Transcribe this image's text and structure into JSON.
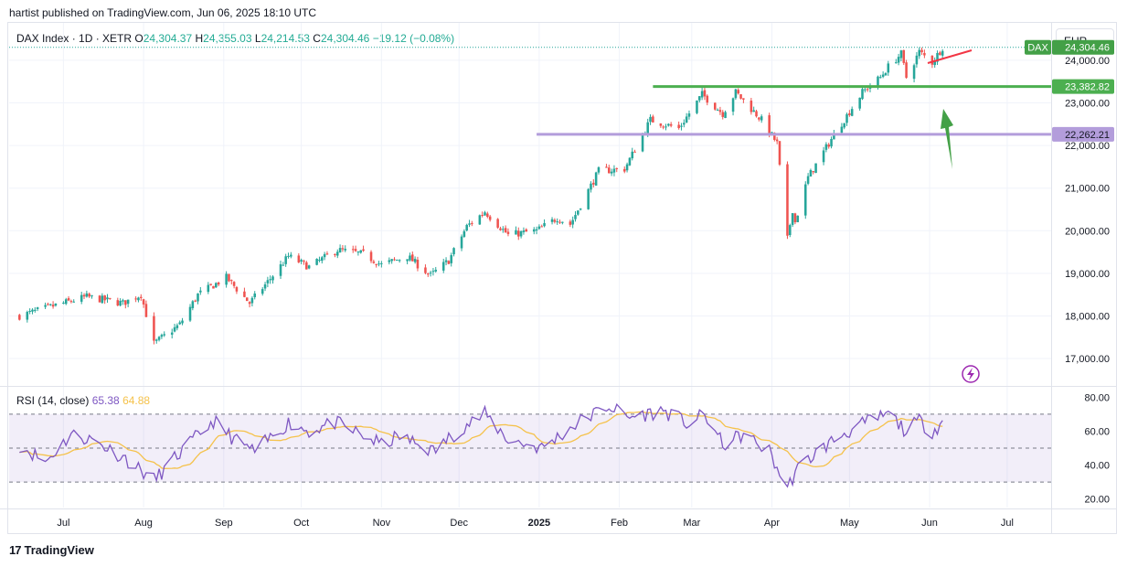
{
  "header": {
    "text": "hartist published on TradingView.com, Jun 06, 2025 18:10 UTC"
  },
  "legend": {
    "symbol": "DAX Index · 1D · XETR",
    "o_label": "O",
    "o": "24,304.37",
    "h_label": "H",
    "h": "24,355.03",
    "l_label": "L",
    "l": "24,214.53",
    "c_label": "C",
    "c": "24,304.46",
    "change": "−19.12 (−0.08%)"
  },
  "currency": "EUR",
  "rsi_legend": {
    "name": "RSI (14, close)",
    "value": "65.38",
    "ma": "64.88"
  },
  "footer": {
    "brand": "TradingView",
    "logo": "17"
  },
  "colors": {
    "up": "#26a69a",
    "down": "#ef5350",
    "green_line": "#4caf50",
    "purple_line": "#b39ddb",
    "rsi": "#7e57c2",
    "rsi_ma": "#f5c24b"
  },
  "chart_data": {
    "type": "candlestick",
    "symbol": "DAX",
    "price_axis": {
      "ticks": [
        "17,000.00",
        "18,000.00",
        "19,000.00",
        "20,000.00",
        "21,000.00",
        "22,000.00",
        "23,000.00",
        "24,000.00"
      ],
      "range": [
        16400,
        24900
      ]
    },
    "price_labels": [
      {
        "text": "DAX",
        "kind": "symbol"
      },
      {
        "text": "24,304.46",
        "kind": "last",
        "value": 24304.46
      },
      {
        "text": "23,382.82",
        "kind": "level",
        "value": 23382.82
      },
      {
        "text": "22,262.21",
        "kind": "level",
        "value": 22262.21
      }
    ],
    "horizontal_lines": [
      {
        "value": 23382.82,
        "from": "2025-02-14",
        "color": "#4caf50"
      },
      {
        "value": 22262.21,
        "from": "2024-12-31",
        "color": "#b39ddb"
      }
    ],
    "x_axis": [
      "Jul",
      "Aug",
      "Sep",
      "Oct",
      "Nov",
      "Dec",
      "2025",
      "Feb",
      "Mar",
      "Apr",
      "May",
      "Jun",
      "Jul"
    ],
    "anchors": [
      [
        "2024-06-14",
        18000
      ],
      [
        "2024-06-28",
        18250
      ],
      [
        "2024-07-10",
        18450
      ],
      [
        "2024-07-24",
        18300
      ],
      [
        "2024-07-31",
        18500
      ],
      [
        "2024-08-05",
        17350
      ],
      [
        "2024-08-15",
        17800
      ],
      [
        "2024-08-22",
        18500
      ],
      [
        "2024-09-02",
        18900
      ],
      [
        "2024-09-11",
        18300
      ],
      [
        "2024-09-18",
        18800
      ],
      [
        "2024-09-26",
        19400
      ],
      [
        "2024-10-04",
        19150
      ],
      [
        "2024-10-15",
        19550
      ],
      [
        "2024-10-25",
        19450
      ],
      [
        "2024-11-01",
        19200
      ],
      [
        "2024-11-11",
        19400
      ],
      [
        "2024-11-20",
        18950
      ],
      [
        "2024-11-27",
        19300
      ],
      [
        "2024-12-04",
        20100
      ],
      [
        "2024-12-11",
        20450
      ],
      [
        "2024-12-20",
        19900
      ],
      [
        "2024-12-31",
        20000
      ],
      [
        "2025-01-08",
        20300
      ],
      [
        "2025-01-13",
        20150
      ],
      [
        "2025-01-24",
        21400
      ],
      [
        "2025-02-03",
        21450
      ],
      [
        "2025-02-13",
        22600
      ],
      [
        "2025-02-24",
        22400
      ],
      [
        "2025-03-05",
        23200
      ],
      [
        "2025-03-13",
        22750
      ],
      [
        "2025-03-18",
        23250
      ],
      [
        "2025-03-28",
        22600
      ],
      [
        "2025-04-03",
        22050
      ],
      [
        "2025-04-07",
        19800
      ],
      [
        "2025-04-09",
        20500
      ],
      [
        "2025-04-10",
        20200
      ],
      [
        "2025-04-15",
        21250
      ],
      [
        "2025-04-25",
        22250
      ],
      [
        "2025-05-06",
        23250
      ],
      [
        "2025-05-13",
        23600
      ],
      [
        "2025-05-16",
        23850
      ],
      [
        "2025-05-21",
        24150
      ],
      [
        "2025-05-23",
        23600
      ],
      [
        "2025-05-28",
        24200
      ],
      [
        "2025-06-02",
        23950
      ],
      [
        "2025-06-06",
        24304.46
      ]
    ],
    "rsi": {
      "axis_ticks": [
        "20.00",
        "40.00",
        "60.00",
        "80.00"
      ],
      "bands": [
        30,
        50,
        70
      ],
      "value": 65.38,
      "ma": 64.88,
      "anchors": [
        [
          "2024-06-14",
          52
        ],
        [
          "2024-06-24",
          42
        ],
        [
          "2024-07-04",
          58
        ],
        [
          "2024-07-12",
          55
        ],
        [
          "2024-07-24",
          45
        ],
        [
          "2024-08-05",
          31
        ],
        [
          "2024-08-15",
          47
        ],
        [
          "2024-08-28",
          66
        ],
        [
          "2024-09-06",
          54
        ],
        [
          "2024-09-13",
          48
        ],
        [
          "2024-09-26",
          65
        ],
        [
          "2024-10-04",
          60
        ],
        [
          "2024-10-14",
          65
        ],
        [
          "2024-10-24",
          58
        ],
        [
          "2024-11-01",
          52
        ],
        [
          "2024-11-08",
          57
        ],
        [
          "2024-11-21",
          48
        ],
        [
          "2024-12-02",
          62
        ],
        [
          "2024-12-11",
          70
        ],
        [
          "2024-12-20",
          55
        ],
        [
          "2025-01-02",
          50
        ],
        [
          "2025-01-16",
          65
        ],
        [
          "2025-01-28",
          75
        ],
        [
          "2025-02-04",
          68
        ],
        [
          "2025-02-18",
          72
        ],
        [
          "2025-02-28",
          64
        ],
        [
          "2025-03-06",
          70
        ],
        [
          "2025-03-13",
          52
        ],
        [
          "2025-03-21",
          58
        ],
        [
          "2025-03-31",
          48
        ],
        [
          "2025-04-04",
          35
        ],
        [
          "2025-04-07",
          26
        ],
        [
          "2025-04-10",
          36
        ],
        [
          "2025-04-17",
          46
        ],
        [
          "2025-04-28",
          58
        ],
        [
          "2025-05-09",
          66
        ],
        [
          "2025-05-16",
          70
        ],
        [
          "2025-05-23",
          60
        ],
        [
          "2025-05-28",
          66
        ],
        [
          "2025-06-02",
          60
        ],
        [
          "2025-06-06",
          65.38
        ]
      ]
    }
  }
}
